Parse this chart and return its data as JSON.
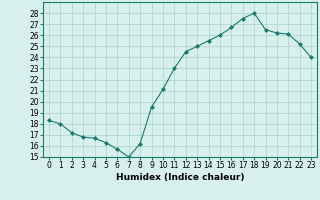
{
  "x": [
    0,
    1,
    2,
    3,
    4,
    5,
    6,
    7,
    8,
    9,
    10,
    11,
    12,
    13,
    14,
    15,
    16,
    17,
    18,
    19,
    20,
    21,
    22,
    23
  ],
  "y": [
    18.3,
    18.0,
    17.2,
    16.8,
    16.7,
    16.3,
    15.7,
    15.0,
    16.2,
    19.5,
    21.1,
    23.0,
    24.5,
    25.0,
    25.5,
    26.0,
    26.7,
    27.5,
    28.0,
    26.5,
    26.2,
    26.1,
    25.2,
    24.0
  ],
  "line_color": "#1a7a6e",
  "marker": "D",
  "marker_size": 2.0,
  "bg_color": "#d8f0ec",
  "grid_color": "#aad4cc",
  "xlabel": "Humidex (Indice chaleur)",
  "ylim": [
    15,
    29
  ],
  "yticks": [
    15,
    16,
    17,
    18,
    19,
    20,
    21,
    22,
    23,
    24,
    25,
    26,
    27,
    28
  ],
  "xticks": [
    0,
    1,
    2,
    3,
    4,
    5,
    6,
    7,
    8,
    9,
    10,
    11,
    12,
    13,
    14,
    15,
    16,
    17,
    18,
    19,
    20,
    21,
    22,
    23
  ],
  "label_fontsize": 6.5,
  "tick_fontsize": 5.5
}
